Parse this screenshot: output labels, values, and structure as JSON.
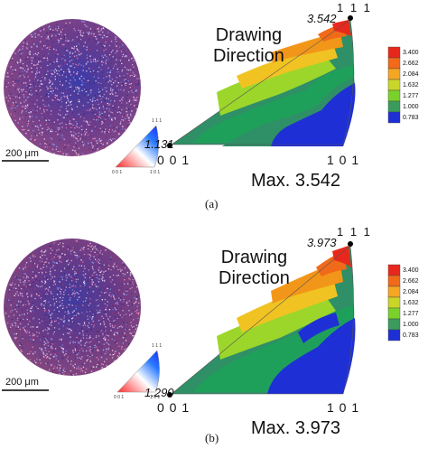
{
  "panels": [
    {
      "id": "a",
      "caption": "(a)",
      "scale_bar": "200 μm",
      "mini_key": {
        "top": "1 1 1",
        "left": "0 0 1",
        "right": "1 0 1"
      },
      "ipf": {
        "corner_top": "1 1 1",
        "corner_left": "0 0 1",
        "corner_right": "1 0 1",
        "direction_label": [
          "Drawing",
          "Direction"
        ],
        "max_value_label": "3.542",
        "min_value_label": "1.131",
        "max_caption": "Max. 3.542"
      },
      "legend": [
        "3.400",
        "2.662",
        "2.084",
        "1.632",
        "1.277",
        "1.000",
        "0.783"
      ]
    },
    {
      "id": "b",
      "caption": "(b)",
      "scale_bar": "200 μm",
      "mini_key": {
        "top": "1 1 1",
        "left": "0 0 1",
        "right": "1 0 1"
      },
      "ipf": {
        "corner_top": "1 1 1",
        "corner_left": "0 0 1",
        "corner_right": "1 0 1",
        "direction_label": [
          "Drawing",
          "Direction"
        ],
        "max_value_label": "3.973",
        "min_value_label": "1.290",
        "max_caption": "Max. 3.973"
      },
      "legend": [
        "3.400",
        "2.662",
        "2.084",
        "1.632",
        "1.277",
        "1.000",
        "0.783"
      ]
    }
  ],
  "legend_colors": [
    "#e8281c",
    "#f06a1a",
    "#f5a623",
    "#c9d628",
    "#7bd12c",
    "#3a9b5c",
    "#1f2fd6"
  ]
}
